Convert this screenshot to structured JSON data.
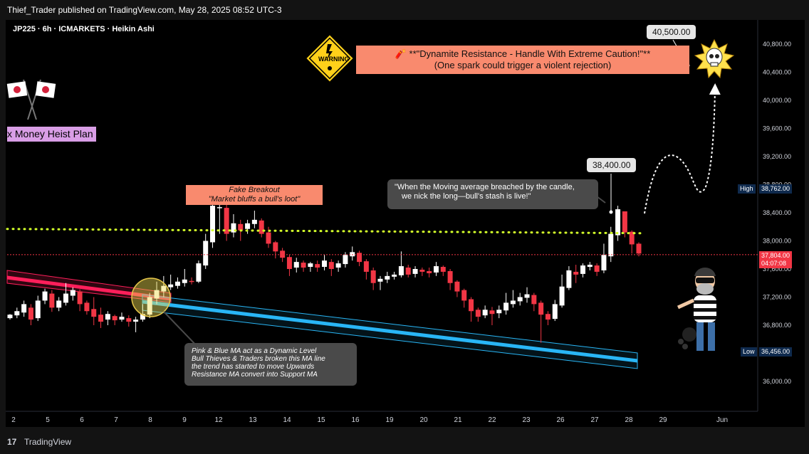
{
  "header": {
    "publisher": "Thief_Trader published on TradingView.com, May 28, 2025 08:52 UTC-3",
    "symbol_line": "JP225 · 6h · ICMARKETS · Heikin Ashi"
  },
  "footer": {
    "brand": "TradingView"
  },
  "annotations": {
    "dynamite_title": "🧨 **\"Dynamite Resistance - Handle With Extreme Caution!\"**",
    "dynamite_sub": "(One spark could trigger a violent rejection)",
    "warning_sign": "WARNING",
    "target_label": "40,500.00",
    "entry_label": "38,400.00",
    "fake_breakout_1": "Fake Breakout",
    "fake_breakout_2": "\"Market bluffs a bull's loot\"",
    "ma_note_1": "\"When the Moving average breached by the candle,",
    "ma_note_2": "we nick the long—bull's stash is live!\"",
    "pink_blue_1": "Pink & Blue MA act as a Dynamic Level",
    "pink_blue_2": "Bull Thieves & Traders broken this MA line",
    "pink_blue_3": "the trend has started to move Upwards",
    "pink_blue_4": "Resistance MA convert into Support MA",
    "money_heist": "x Money Heist Plan"
  },
  "price_scale": {
    "high_label": "High",
    "high_value": "38,762.00",
    "low_label": "Low",
    "low_value": "36,456.00",
    "current_value": "37,804.00",
    "countdown": "04:07:08"
  },
  "colors": {
    "up": "#ffffff",
    "down": "#f23645",
    "pink_ma": "#ff1f5b",
    "blue_ma": "#29b6f6",
    "dotted_level": "#d4ff2a",
    "callout_salmon": "#f98a6e",
    "callout_gray": "#4a4a4a"
  },
  "chart_data": {
    "type": "candlestick",
    "subtype": "Heikin Ashi",
    "symbol": "JP225",
    "interval": "6h",
    "broker": "ICMARKETS",
    "y_ticks": [
      40800,
      40400,
      40000,
      39600,
      39200,
      38800,
      38400,
      38000,
      37600,
      37200,
      36800,
      36400,
      36000
    ],
    "y_tick_labels": [
      "40,800.00",
      "40,400.00",
      "40,000.00",
      "39,600.00",
      "39,200.00",
      "38,800.00",
      "38,400.00",
      "38,000.00",
      "37,600.00",
      "37,200.00",
      "36,800.00",
      "36,400.00",
      "36,000.00"
    ],
    "ylim": [
      35500,
      41100
    ],
    "x_tick_labels": [
      "2",
      "5",
      "6",
      "7",
      "8",
      "9",
      "12",
      "13",
      "14",
      "15",
      "16",
      "19",
      "20",
      "21",
      "22",
      "23",
      "26",
      "27",
      "28",
      "29",
      "Jun"
    ],
    "candles": [
      [
        36900,
        36950,
        36880,
        36960
      ],
      [
        36940,
        37000,
        36900,
        37050
      ],
      [
        36980,
        37100,
        36920,
        37150
      ],
      [
        37050,
        36880,
        36800,
        37100
      ],
      [
        36900,
        37150,
        36860,
        37220
      ],
      [
        37150,
        37280,
        37100,
        37320
      ],
      [
        37250,
        37050,
        36990,
        37300
      ],
      [
        37050,
        37150,
        37000,
        37200
      ],
      [
        37120,
        37250,
        37080,
        37400
      ],
      [
        37220,
        37300,
        37150,
        37340
      ],
      [
        37280,
        37100,
        37000,
        37310
      ],
      [
        37120,
        37000,
        36950,
        37150
      ],
      [
        37030,
        36920,
        36800,
        37200
      ],
      [
        36950,
        36850,
        36760,
        37050
      ],
      [
        36880,
        36960,
        36800,
        37000
      ],
      [
        36930,
        36870,
        36800,
        36950
      ],
      [
        36880,
        36920,
        36850,
        36980
      ],
      [
        36900,
        36850,
        36780,
        36940
      ],
      [
        36850,
        36880,
        36700,
        36920
      ],
      [
        36880,
        36960,
        36850,
        37100
      ],
      [
        36950,
        37200,
        36900,
        37260
      ],
      [
        37180,
        37300,
        37100,
        37420
      ],
      [
        37280,
        37360,
        37200,
        37500
      ],
      [
        37340,
        37380,
        37300,
        37520
      ],
      [
        37360,
        37420,
        37320,
        37480
      ],
      [
        37400,
        37450,
        37350,
        37600
      ],
      [
        37430,
        37420,
        37380,
        37480
      ],
      [
        37420,
        37680,
        37400,
        37720
      ],
      [
        37650,
        38000,
        37600,
        38100
      ],
      [
        37980,
        38500,
        37900,
        38520
      ],
      [
        38480,
        38480,
        38100,
        38520
      ],
      [
        38470,
        38100,
        38000,
        38520
      ],
      [
        38120,
        38250,
        38050,
        38380
      ],
      [
        38240,
        38150,
        38000,
        38300
      ],
      [
        38170,
        38250,
        38100,
        38300
      ],
      [
        38240,
        38300,
        38180,
        38430
      ],
      [
        38290,
        38100,
        38050,
        38320
      ],
      [
        38120,
        37960,
        37900,
        38200
      ],
      [
        37980,
        37850,
        37750,
        38000
      ],
      [
        37860,
        37760,
        37700,
        37900
      ],
      [
        37770,
        37600,
        37500,
        37800
      ],
      [
        37620,
        37700,
        37550,
        37760
      ],
      [
        37690,
        37620,
        37560,
        37720
      ],
      [
        37630,
        37680,
        37560,
        37700
      ],
      [
        37670,
        37620,
        37560,
        37720
      ],
      [
        37630,
        37720,
        37580,
        37800
      ],
      [
        37700,
        37600,
        37500,
        37740
      ],
      [
        37620,
        37680,
        37560,
        37720
      ],
      [
        37670,
        37800,
        37620,
        37840
      ],
      [
        37780,
        37840,
        37720,
        37920
      ],
      [
        37830,
        37700,
        37640,
        37860
      ],
      [
        37710,
        37560,
        37450,
        37740
      ],
      [
        37580,
        37400,
        37300,
        37620
      ],
      [
        37420,
        37460,
        37300,
        37500
      ],
      [
        37450,
        37500,
        37400,
        37560
      ],
      [
        37490,
        37520,
        37450,
        37560
      ],
      [
        37510,
        37640,
        37480,
        37850
      ],
      [
        37620,
        37520,
        37480,
        37660
      ],
      [
        37530,
        37600,
        37480,
        37640
      ],
      [
        37590,
        37560,
        37500,
        37620
      ],
      [
        37570,
        37540,
        37480,
        37620
      ],
      [
        37550,
        37640,
        37500,
        37700
      ],
      [
        37630,
        37560,
        37500,
        37650
      ],
      [
        37570,
        37400,
        37300,
        37600
      ],
      [
        37420,
        37280,
        37200,
        37440
      ],
      [
        37300,
        37150,
        37050,
        37320
      ],
      [
        37170,
        37000,
        36850,
        37200
      ],
      [
        37020,
        36920,
        36850,
        37050
      ],
      [
        36940,
        37020,
        36900,
        37080
      ],
      [
        37010,
        36960,
        36800,
        37060
      ],
      [
        36970,
        37020,
        36900,
        37080
      ],
      [
        37010,
        37120,
        36950,
        37260
      ],
      [
        37100,
        37150,
        37050,
        37300
      ],
      [
        37140,
        37200,
        37080,
        37260
      ],
      [
        37190,
        37240,
        37120,
        37340
      ],
      [
        37230,
        37100,
        37000,
        37260
      ],
      [
        37120,
        36950,
        36550,
        37150
      ],
      [
        36960,
        36880,
        36800,
        37000
      ],
      [
        36890,
        37100,
        36860,
        37160
      ],
      [
        37080,
        37350,
        37050,
        37520
      ],
      [
        37330,
        37580,
        37300,
        37640
      ],
      [
        37560,
        37520,
        37400,
        37660
      ],
      [
        37530,
        37650,
        37480,
        37680
      ],
      [
        37630,
        37660,
        37580,
        37700
      ],
      [
        37650,
        37560,
        37500,
        37680
      ],
      [
        37580,
        37800,
        37540,
        37960
      ],
      [
        37780,
        38100,
        37700,
        38200
      ],
      [
        38080,
        38450,
        38000,
        38500
      ],
      [
        38420,
        38120,
        38050,
        38420
      ],
      [
        38130,
        37950,
        37820,
        38150
      ],
      [
        37960,
        37820,
        37780,
        37980
      ]
    ],
    "annotated_levels": {
      "dotted_resistance": 38170,
      "target": 40500,
      "entry_marker": 38400,
      "current_price": 37804,
      "high": 38762,
      "low": 36456
    }
  }
}
